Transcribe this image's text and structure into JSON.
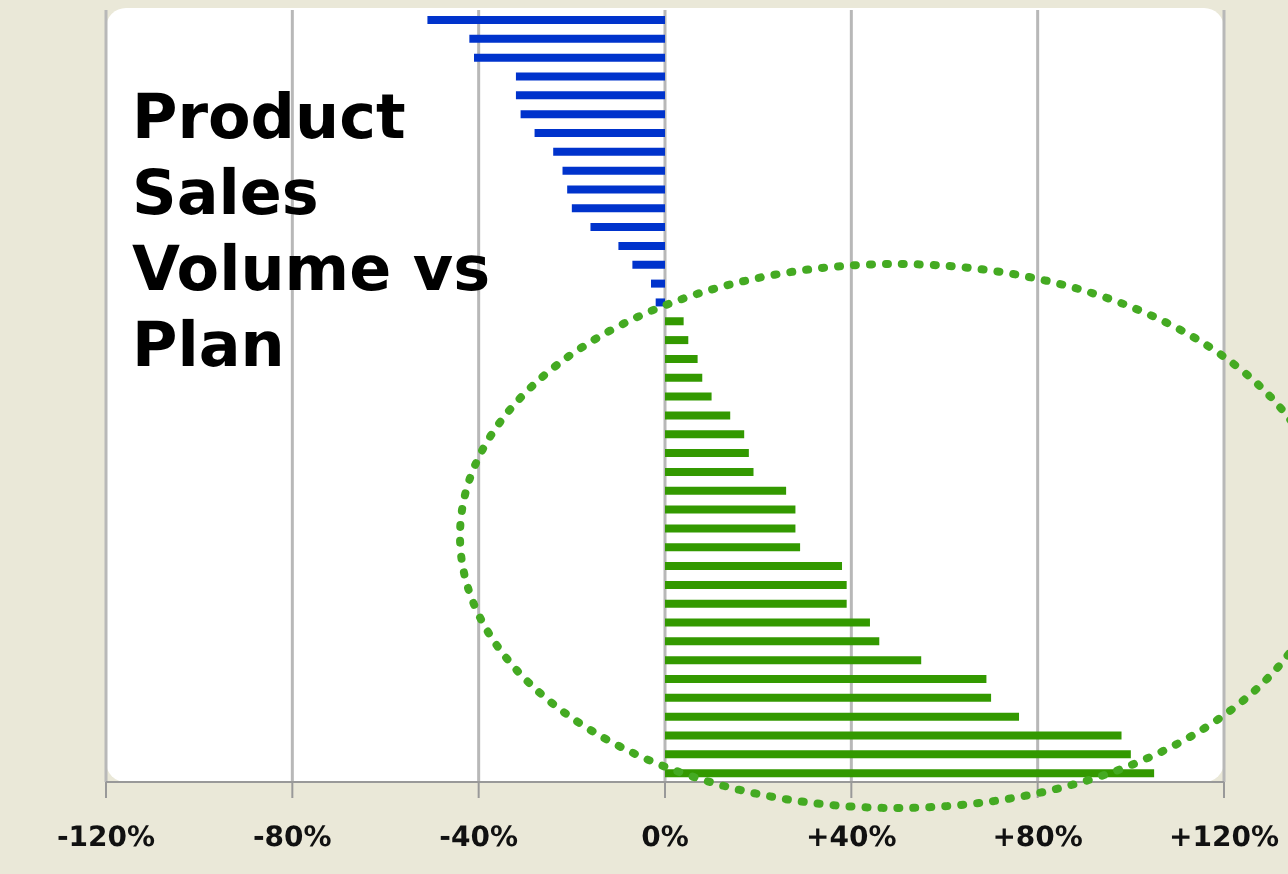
{
  "chart_data": {
    "type": "bar",
    "orientation": "horizontal",
    "title": "Product Sales Volume vs Plan",
    "categories": [
      null,
      null,
      null,
      null,
      null,
      null,
      null,
      null,
      null,
      null,
      null,
      null,
      null,
      null,
      null,
      null,
      null,
      null,
      null,
      null,
      null,
      null,
      null,
      null,
      null,
      null,
      null,
      null,
      null,
      null,
      null,
      null,
      null,
      null,
      null,
      null,
      null,
      null,
      null,
      null,
      null
    ],
    "values": [
      -51,
      -42,
      -41,
      -32,
      -32,
      -31,
      -28,
      -24,
      -22,
      -21,
      -20,
      -16,
      -10,
      -7,
      -3,
      -2,
      4,
      5,
      7,
      8,
      10,
      14,
      17,
      18,
      19,
      26,
      28,
      28,
      29,
      38,
      39,
      39,
      44,
      46,
      55,
      69,
      70,
      76,
      98,
      100,
      105
    ],
    "colors": [
      "#0033cc",
      "#0033cc",
      "#0033cc",
      "#0033cc",
      "#0033cc",
      "#0033cc",
      "#0033cc",
      "#0033cc",
      "#0033cc",
      "#0033cc",
      "#0033cc",
      "#0033cc",
      "#0033cc",
      "#0033cc",
      "#0033cc",
      "#0033cc",
      "#339900",
      "#339900",
      "#339900",
      "#339900",
      "#339900",
      "#339900",
      "#339900",
      "#339900",
      "#339900",
      "#339900",
      "#339900",
      "#339900",
      "#339900",
      "#339900",
      "#339900",
      "#339900",
      "#339900",
      "#339900",
      "#339900",
      "#339900",
      "#339900",
      "#339900",
      "#339900",
      "#339900",
      "#339900"
    ],
    "xlim": [
      -120,
      120
    ],
    "xticks": [
      {
        "value": -120,
        "label": "-120%"
      },
      {
        "value": -80,
        "label": "-80%"
      },
      {
        "value": -40,
        "label": "-40%"
      },
      {
        "value": 0,
        "label": "0%"
      },
      {
        "value": 40,
        "label": "+40%"
      },
      {
        "value": 80,
        "label": "+80%"
      },
      {
        "value": 120,
        "label": "+120%"
      }
    ],
    "grid": "x"
  }
}
